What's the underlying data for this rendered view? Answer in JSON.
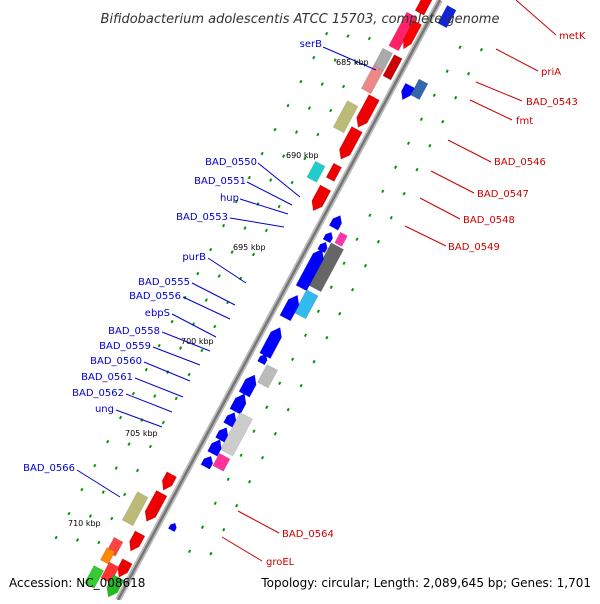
{
  "title": "Bifidobacterium adolescentis ATCC 15703, complete genome",
  "footer": {
    "accession": "Accession: NC_008618",
    "summary": "Topology: circular; Length: 2,089,645 bp; Genes: 1,701"
  },
  "colors": {
    "left_label": "#0000cc",
    "right_label": "#cc0000",
    "leader_left": "#0000cc",
    "leader_right": "#cc0000",
    "backbone": "#777777",
    "tick": "#009900"
  },
  "kbp_ticks": [
    "685 kbp",
    "690 kbp",
    "695 kbp",
    "700 kbp",
    "705 kbp",
    "710 kbp"
  ],
  "left_labels": [
    "serB",
    "BAD_0550",
    "BAD_0551",
    "hup",
    "BAD_0553",
    "purB",
    "BAD_0555",
    "BAD_0556",
    "ebpS",
    "BAD_0558",
    "BAD_0559",
    "BAD_0560",
    "BAD_0561",
    "BAD_0562",
    "ung",
    "BAD_0566"
  ],
  "right_labels": [
    "metK",
    "priA",
    "BAD_0543",
    "fmt",
    "BAD_0546",
    "BAD_0547",
    "BAD_0548",
    "BAD_0549",
    "BAD_0564",
    "groEL"
  ]
}
